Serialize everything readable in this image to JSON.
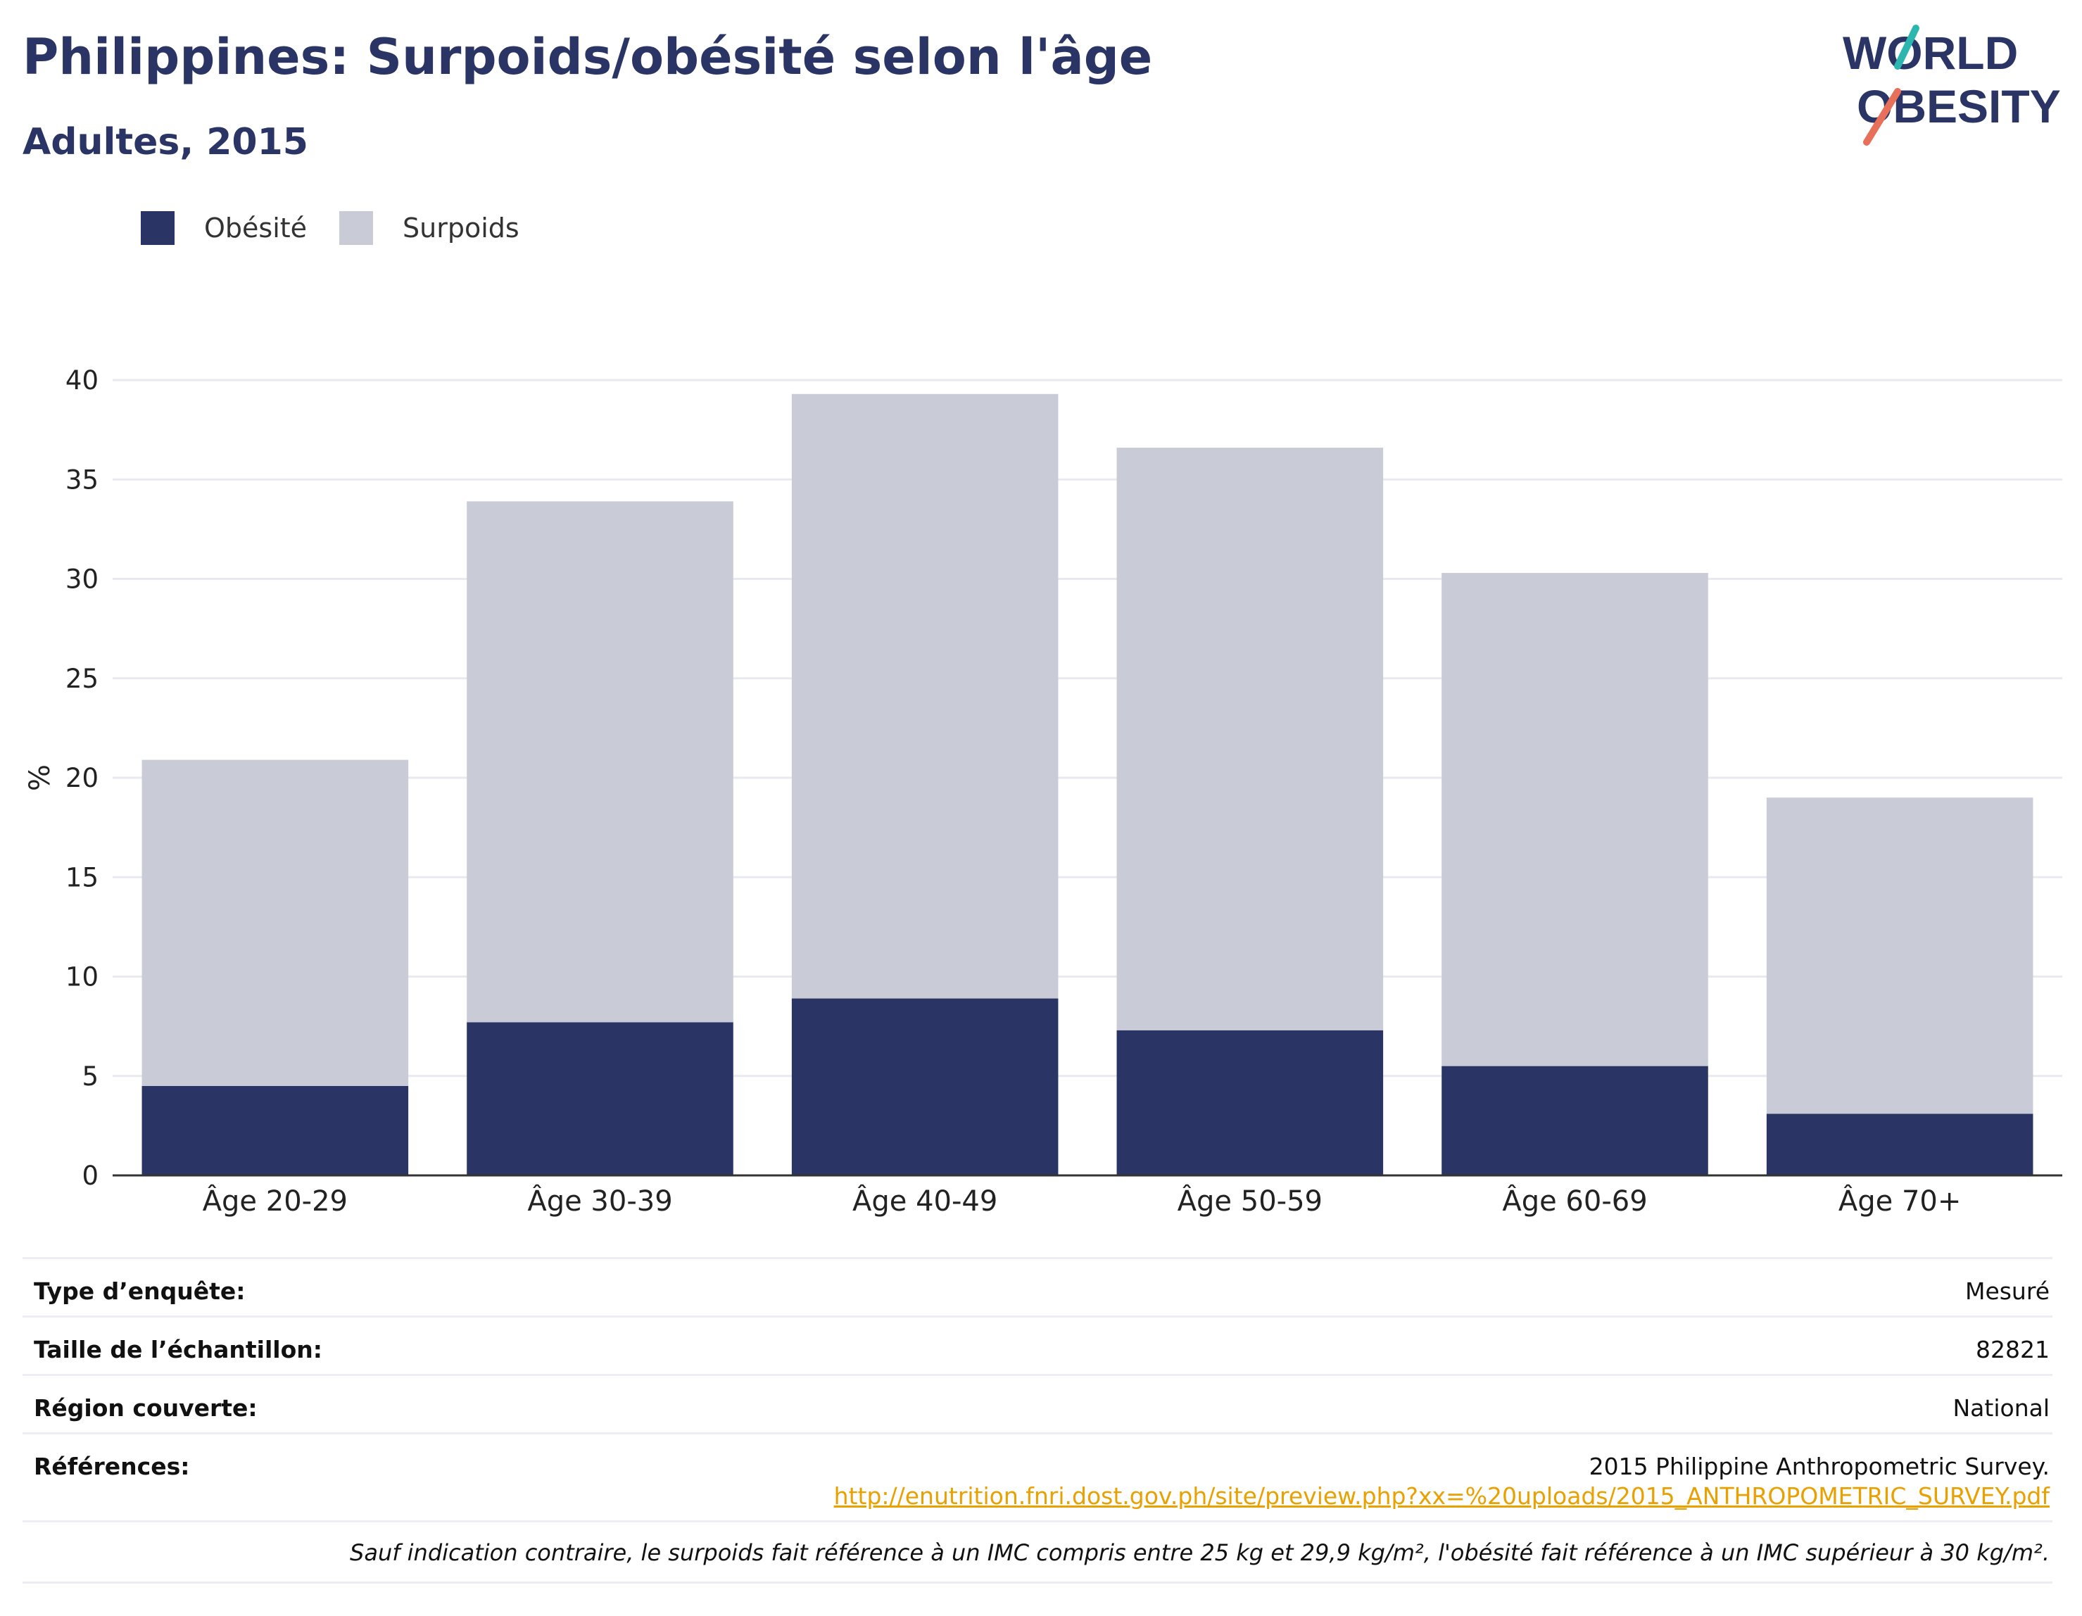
{
  "header": {
    "title": "Philippines: Surpoids/obésité selon l'âge",
    "subtitle": "Adultes, 2015",
    "logo_line1": "WORLD",
    "logo_line2": "OBESITY"
  },
  "colors": {
    "obesity": "#2a3565",
    "overweight": "#c9cbd6",
    "title": "#2a3565",
    "link": "#e8a100",
    "logo_teal": "#2bb6b0",
    "logo_coral": "#e8705a"
  },
  "chart_data": {
    "type": "bar",
    "stacked": true,
    "categories": [
      "Âge 20-29",
      "Âge 30-39",
      "Âge 40-49",
      "Âge 50-59",
      "Âge 60-69",
      "Âge 70+"
    ],
    "series": [
      {
        "name": "Obésité",
        "values": [
          4.5,
          7.7,
          8.9,
          7.3,
          5.5,
          3.1
        ]
      },
      {
        "name": "Surpoids",
        "values": [
          16.4,
          26.2,
          30.4,
          29.3,
          24.8,
          15.9
        ]
      }
    ],
    "totals": [
      20.9,
      33.9,
      39.3,
      36.6,
      30.3,
      19.0
    ],
    "ylabel": "%",
    "ylim": [
      0,
      40
    ],
    "yticks": [
      0,
      5,
      10,
      15,
      20,
      25,
      30,
      35,
      40
    ],
    "grid": true,
    "legend_position": "top-left"
  },
  "info": {
    "survey_type_label": "Type d’enquête:",
    "survey_type_value": "Mesuré",
    "sample_size_label": "Taille de l’échantillon:",
    "sample_size_value": "82821",
    "region_label": "Région couverte:",
    "region_value": "National",
    "references_label": "Références:",
    "references_value": "2015 Philippine Anthropometric Survey.",
    "references_link": "http://enutrition.fnri.dost.gov.ph/site/preview.php?xx=%20uploads/2015_ANTHROPOMETRIC_SURVEY.pdf",
    "note": "Sauf indication contraire, le surpoids fait référence à un IMC compris entre 25 kg et 29,9 kg/m², l'obésité fait référence à un IMC supérieur à 30 kg/m²."
  }
}
